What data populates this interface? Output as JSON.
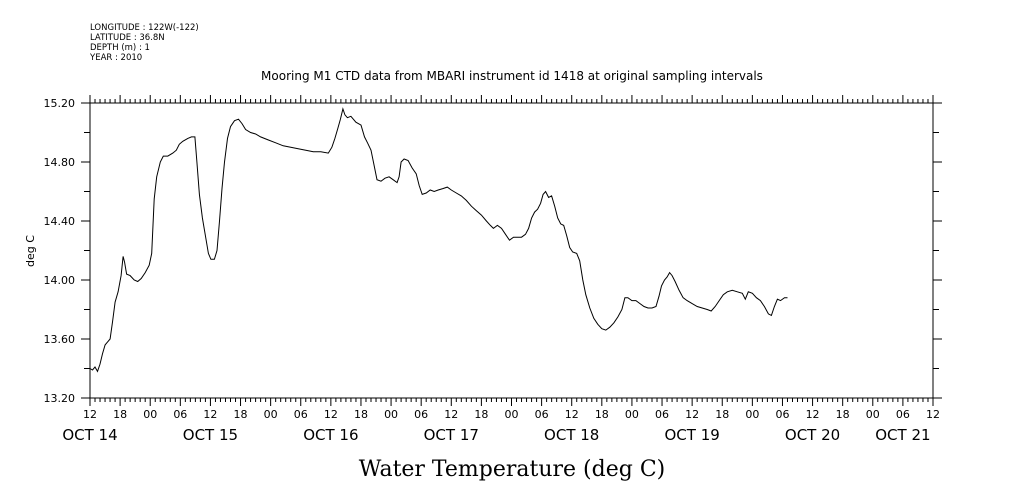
{
  "meta": {
    "longitude": "LONGITUDE : 122W(-122)",
    "latitude": "LATITUDE : 36.8N",
    "depth": "DEPTH (m) : 1",
    "year": "YEAR : 2010"
  },
  "chart_data": {
    "type": "line",
    "title": "Mooring M1 CTD data from MBARI instrument id 1418 at original sampling intervals",
    "ylabel": "deg C",
    "xlabel": "Water Temperature (deg C)",
    "ylim": [
      13.2,
      15.2
    ],
    "yticks": [
      "13.20",
      "13.60",
      "14.00",
      "14.40",
      "14.80",
      "15.20"
    ],
    "xlim_hours": [
      12,
      180
    ],
    "xtick_labels": [
      "12",
      "18",
      "00",
      "06",
      "12",
      "18",
      "00",
      "06",
      "12",
      "18",
      "00",
      "06",
      "12",
      "18",
      "00",
      "06",
      "12",
      "18",
      "00",
      "06",
      "12",
      "18",
      "00",
      "06",
      "12",
      "18",
      "00",
      "06",
      "12"
    ],
    "day_labels": [
      {
        "label": "OCT 14",
        "hour": 12
      },
      {
        "label": "OCT 15",
        "hour": 36
      },
      {
        "label": "OCT 16",
        "hour": 60
      },
      {
        "label": "OCT 17",
        "hour": 84
      },
      {
        "label": "OCT 18",
        "hour": 108
      },
      {
        "label": "OCT 19",
        "hour": 132
      },
      {
        "label": "OCT 20",
        "hour": 156
      },
      {
        "label": "OCT 21",
        "hour": 174
      }
    ],
    "grid": false,
    "series": [
      {
        "color": "#000000",
        "points": [
          [
            12.0,
            13.4
          ],
          [
            12.5,
            13.39
          ],
          [
            13.0,
            13.41
          ],
          [
            13.5,
            13.38
          ],
          [
            14.0,
            13.43
          ],
          [
            14.5,
            13.5
          ],
          [
            15.0,
            13.56
          ],
          [
            15.5,
            13.58
          ],
          [
            16.0,
            13.6
          ],
          [
            16.5,
            13.72
          ],
          [
            17.0,
            13.85
          ],
          [
            17.6,
            13.92
          ],
          [
            18.2,
            14.03
          ],
          [
            18.6,
            14.16
          ],
          [
            18.9,
            14.12
          ],
          [
            19.3,
            14.04
          ],
          [
            20.0,
            14.03
          ],
          [
            20.8,
            14.0
          ],
          [
            21.5,
            13.99
          ],
          [
            22.2,
            14.01
          ],
          [
            23.0,
            14.05
          ],
          [
            23.8,
            14.1
          ],
          [
            24.3,
            14.18
          ],
          [
            24.8,
            14.55
          ],
          [
            25.3,
            14.7
          ],
          [
            26.0,
            14.8
          ],
          [
            26.6,
            14.84
          ],
          [
            27.5,
            14.84
          ],
          [
            28.5,
            14.86
          ],
          [
            29.2,
            14.88
          ],
          [
            29.8,
            14.92
          ],
          [
            30.5,
            14.94
          ],
          [
            31.5,
            14.96
          ],
          [
            32.2,
            14.97
          ],
          [
            32.9,
            14.97
          ],
          [
            33.3,
            14.8
          ],
          [
            33.8,
            14.58
          ],
          [
            34.4,
            14.42
          ],
          [
            35.0,
            14.3
          ],
          [
            35.6,
            14.18
          ],
          [
            36.1,
            14.14
          ],
          [
            36.8,
            14.14
          ],
          [
            37.3,
            14.2
          ],
          [
            37.8,
            14.4
          ],
          [
            38.3,
            14.62
          ],
          [
            38.8,
            14.8
          ],
          [
            39.4,
            14.96
          ],
          [
            40.0,
            15.04
          ],
          [
            40.8,
            15.08
          ],
          [
            41.6,
            15.09
          ],
          [
            42.3,
            15.06
          ],
          [
            43.0,
            15.02
          ],
          [
            44.0,
            15.0
          ],
          [
            45.0,
            14.99
          ],
          [
            46.0,
            14.97
          ],
          [
            47.5,
            14.95
          ],
          [
            49.0,
            14.93
          ],
          [
            50.5,
            14.91
          ],
          [
            52.0,
            14.9
          ],
          [
            53.5,
            14.89
          ],
          [
            55.0,
            14.88
          ],
          [
            56.5,
            14.87
          ],
          [
            58.0,
            14.87
          ],
          [
            59.5,
            14.86
          ],
          [
            60.2,
            14.9
          ],
          [
            60.8,
            14.96
          ],
          [
            61.4,
            15.03
          ],
          [
            61.9,
            15.09
          ],
          [
            62.4,
            15.16
          ],
          [
            62.8,
            15.12
          ],
          [
            63.3,
            15.1
          ],
          [
            64.0,
            15.11
          ],
          [
            65.0,
            15.07
          ],
          [
            66.0,
            15.05
          ],
          [
            66.7,
            14.97
          ],
          [
            67.3,
            14.93
          ],
          [
            68.0,
            14.88
          ],
          [
            68.6,
            14.78
          ],
          [
            69.2,
            14.68
          ],
          [
            70.0,
            14.67
          ],
          [
            70.8,
            14.69
          ],
          [
            71.6,
            14.7
          ],
          [
            72.4,
            14.68
          ],
          [
            73.2,
            14.66
          ],
          [
            73.6,
            14.7
          ],
          [
            74.0,
            14.8
          ],
          [
            74.6,
            14.82
          ],
          [
            75.4,
            14.81
          ],
          [
            76.2,
            14.76
          ],
          [
            77.0,
            14.72
          ],
          [
            77.6,
            14.64
          ],
          [
            78.2,
            14.58
          ],
          [
            79.0,
            14.59
          ],
          [
            79.8,
            14.61
          ],
          [
            80.6,
            14.6
          ],
          [
            81.4,
            14.61
          ],
          [
            82.3,
            14.62
          ],
          [
            83.2,
            14.63
          ],
          [
            84.0,
            14.61
          ],
          [
            85.0,
            14.59
          ],
          [
            86.0,
            14.57
          ],
          [
            87.0,
            14.54
          ],
          [
            88.0,
            14.5
          ],
          [
            89.0,
            14.47
          ],
          [
            90.0,
            14.44
          ],
          [
            91.0,
            14.4
          ],
          [
            91.8,
            14.37
          ],
          [
            92.4,
            14.35
          ],
          [
            93.2,
            14.37
          ],
          [
            94.0,
            14.35
          ],
          [
            94.8,
            14.31
          ],
          [
            95.6,
            14.27
          ],
          [
            96.4,
            14.29
          ],
          [
            97.2,
            14.29
          ],
          [
            98.0,
            14.29
          ],
          [
            98.8,
            14.31
          ],
          [
            99.4,
            14.35
          ],
          [
            100.0,
            14.42
          ],
          [
            100.6,
            14.46
          ],
          [
            101.2,
            14.48
          ],
          [
            101.8,
            14.52
          ],
          [
            102.3,
            14.58
          ],
          [
            102.8,
            14.6
          ],
          [
            103.4,
            14.56
          ],
          [
            104.0,
            14.57
          ],
          [
            104.6,
            14.5
          ],
          [
            105.2,
            14.42
          ],
          [
            105.8,
            14.38
          ],
          [
            106.4,
            14.37
          ],
          [
            107.0,
            14.3
          ],
          [
            107.6,
            14.22
          ],
          [
            108.2,
            14.19
          ],
          [
            109.0,
            14.18
          ],
          [
            109.6,
            14.13
          ],
          [
            110.2,
            14.0
          ],
          [
            110.8,
            13.9
          ],
          [
            111.6,
            13.81
          ],
          [
            112.4,
            13.74
          ],
          [
            113.2,
            13.7
          ],
          [
            114.0,
            13.67
          ],
          [
            114.8,
            13.66
          ],
          [
            115.6,
            13.68
          ],
          [
            116.4,
            13.71
          ],
          [
            117.2,
            13.75
          ],
          [
            118.0,
            13.8
          ],
          [
            118.6,
            13.88
          ],
          [
            119.2,
            13.88
          ],
          [
            120.0,
            13.86
          ],
          [
            120.8,
            13.86
          ],
          [
            121.6,
            13.84
          ],
          [
            122.4,
            13.82
          ],
          [
            123.2,
            13.81
          ],
          [
            124.0,
            13.81
          ],
          [
            124.8,
            13.82
          ],
          [
            125.4,
            13.89
          ],
          [
            125.9,
            13.96
          ],
          [
            126.5,
            14.0
          ],
          [
            127.0,
            14.02
          ],
          [
            127.5,
            14.05
          ],
          [
            128.0,
            14.03
          ],
          [
            128.6,
            13.99
          ],
          [
            129.4,
            13.93
          ],
          [
            130.2,
            13.88
          ],
          [
            131.0,
            13.86
          ],
          [
            132.0,
            13.84
          ],
          [
            133.0,
            13.82
          ],
          [
            134.0,
            13.81
          ],
          [
            135.0,
            13.8
          ],
          [
            135.8,
            13.79
          ],
          [
            136.6,
            13.82
          ],
          [
            137.4,
            13.86
          ],
          [
            138.2,
            13.9
          ],
          [
            139.0,
            13.92
          ],
          [
            140.0,
            13.93
          ],
          [
            141.0,
            13.92
          ],
          [
            142.0,
            13.91
          ],
          [
            142.6,
            13.87
          ],
          [
            143.2,
            13.92
          ],
          [
            144.0,
            13.91
          ],
          [
            144.8,
            13.88
          ],
          [
            145.6,
            13.86
          ],
          [
            146.4,
            13.82
          ],
          [
            147.2,
            13.77
          ],
          [
            147.8,
            13.76
          ],
          [
            148.4,
            13.82
          ],
          [
            149.0,
            13.87
          ],
          [
            149.6,
            13.86
          ],
          [
            150.4,
            13.88
          ],
          [
            151.0,
            13.88
          ]
        ]
      }
    ]
  }
}
